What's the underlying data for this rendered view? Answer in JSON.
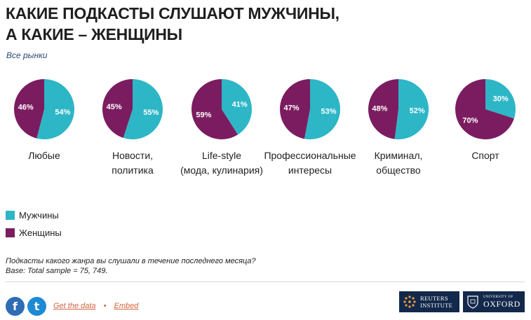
{
  "header": {
    "title_line1": "КАКИЕ ПОДКАСТЫ СЛУШАЮТ МУЖЧИНЫ,",
    "title_line2": "А КАКИЕ – ЖЕНЩИНЫ",
    "subtitle": "Все рынки"
  },
  "legend": {
    "men_label": "Мужчины",
    "women_label": "Женщины"
  },
  "footer": {
    "question": "Подкасты какого жанра вы слушали в течение последнего месяца?",
    "base": "Base: Total sample = 75, 749.",
    "get_data": "Get the data",
    "separator": "•",
    "embed": "Embed",
    "facebook_glyph": "f",
    "twitter_glyph": "t",
    "reuters_line1": "REUTERS",
    "reuters_line2": "INSTITUTE",
    "oxford_line1": "UNIVERSITY OF",
    "oxford_line2": "OXFORD"
  },
  "colors": {
    "men": "#2db6c6",
    "women": "#7b1c60"
  },
  "chart_data": {
    "type": "pie",
    "series_names": [
      "Мужчины",
      "Женщины"
    ],
    "pies": [
      {
        "label_lines": [
          "Любые"
        ],
        "men": 54,
        "women": 46
      },
      {
        "label_lines": [
          "Новости,",
          "политика"
        ],
        "men": 55,
        "women": 45
      },
      {
        "label_lines": [
          "Life-style",
          "(мода, кулинария)"
        ],
        "men": 41,
        "women": 59
      },
      {
        "label_lines": [
          "Профессиональные",
          "интересы"
        ],
        "men": 53,
        "women": 47
      },
      {
        "label_lines": [
          "Криминал,",
          "общество"
        ],
        "men": 52,
        "women": 48
      },
      {
        "label_lines": [
          "Спорт"
        ],
        "men": 30,
        "women": 70
      }
    ],
    "legend_position": "bottom-left"
  }
}
